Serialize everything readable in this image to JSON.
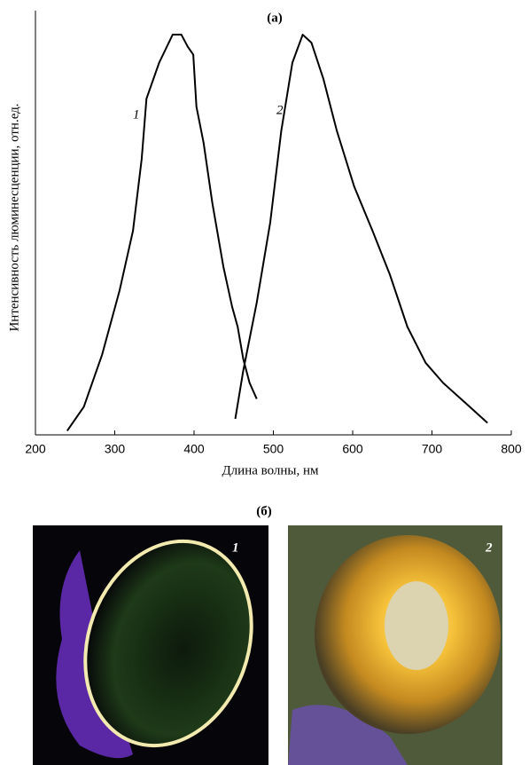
{
  "chart_data": {
    "type": "line",
    "title": "(а)",
    "xlabel": "Длина волны, нм",
    "ylabel": "Интенсивность люминесценции, отн.ед.",
    "xlim": [
      200,
      800
    ],
    "xticks": [
      200,
      300,
      400,
      500,
      600,
      700,
      800
    ],
    "ylim": [
      0,
      1.06
    ],
    "grid": false,
    "series": [
      {
        "name": "1",
        "color": "#000000",
        "x": [
          240,
          261,
          284,
          306,
          323,
          334,
          340,
          356,
          373,
          384,
          392,
          399,
          403,
          412,
          423,
          437,
          448,
          455,
          462,
          470,
          479
        ],
        "values": [
          0.01,
          0.07,
          0.2,
          0.36,
          0.51,
          0.69,
          0.84,
          0.93,
          1.0,
          1.0,
          0.97,
          0.95,
          0.82,
          0.73,
          0.58,
          0.42,
          0.32,
          0.27,
          0.19,
          0.13,
          0.09
        ]
      },
      {
        "name": "2",
        "color": "#000000",
        "x": [
          452,
          462,
          479,
          496,
          510,
          524,
          537,
          548,
          563,
          580,
          602,
          625,
          647,
          669,
          692,
          714,
          742,
          770
        ],
        "values": [
          0.04,
          0.16,
          0.33,
          0.53,
          0.76,
          0.93,
          1.0,
          0.98,
          0.89,
          0.76,
          0.62,
          0.51,
          0.4,
          0.27,
          0.18,
          0.13,
          0.08,
          0.03
        ]
      }
    ]
  },
  "photos": {
    "label": "(б)",
    "panels": [
      "1",
      "2"
    ]
  }
}
